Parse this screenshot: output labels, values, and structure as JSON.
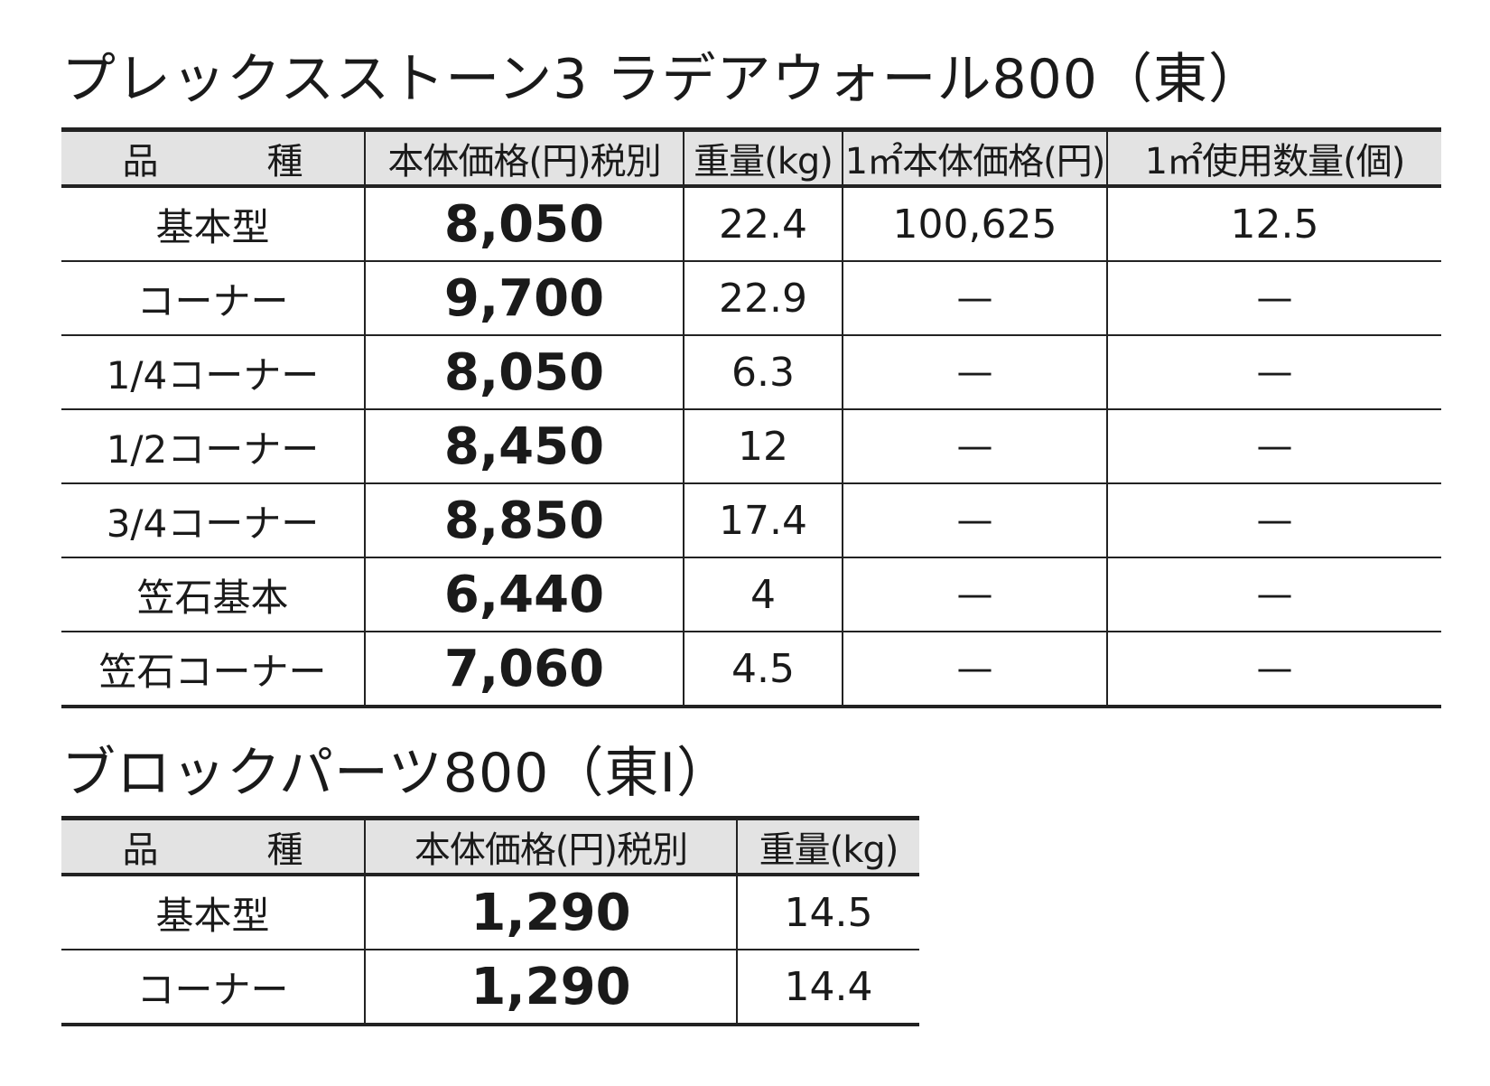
{
  "section1": {
    "title": "プレックスストーン3 ラデアウォール800（東）",
    "headers": [
      "品　種",
      "本体価格(円)税別",
      "重量(kg)",
      "1㎡本体価格(円)",
      "1㎡使用数量(個)"
    ],
    "rows": [
      {
        "name": "基本型",
        "price": "8,050",
        "weight": "22.4",
        "sqm_price": "100,625",
        "sqm_qty": "12.5"
      },
      {
        "name": "コーナー",
        "price": "9,700",
        "weight": "22.9",
        "sqm_price": "—",
        "sqm_qty": "—"
      },
      {
        "name": "1/4コーナー",
        "price": "8,050",
        "weight": "6.3",
        "sqm_price": "—",
        "sqm_qty": "—"
      },
      {
        "name": "1/2コーナー",
        "price": "8,450",
        "weight": "12",
        "sqm_price": "—",
        "sqm_qty": "—"
      },
      {
        "name": "3/4コーナー",
        "price": "8,850",
        "weight": "17.4",
        "sqm_price": "—",
        "sqm_qty": "—"
      },
      {
        "name": "笠石基本",
        "price": "6,440",
        "weight": "4",
        "sqm_price": "—",
        "sqm_qty": "—"
      },
      {
        "name": "笠石コーナー",
        "price": "7,060",
        "weight": "4.5",
        "sqm_price": "—",
        "sqm_qty": "—"
      }
    ]
  },
  "section2": {
    "title": "ブロックパーツ800（東Ⅰ）",
    "headers": [
      "品　種",
      "本体価格(円)税別",
      "重量(kg)"
    ],
    "rows": [
      {
        "name": "基本型",
        "price": "1,290",
        "weight": "14.5"
      },
      {
        "name": "コーナー",
        "price": "1,290",
        "weight": "14.4"
      }
    ]
  }
}
